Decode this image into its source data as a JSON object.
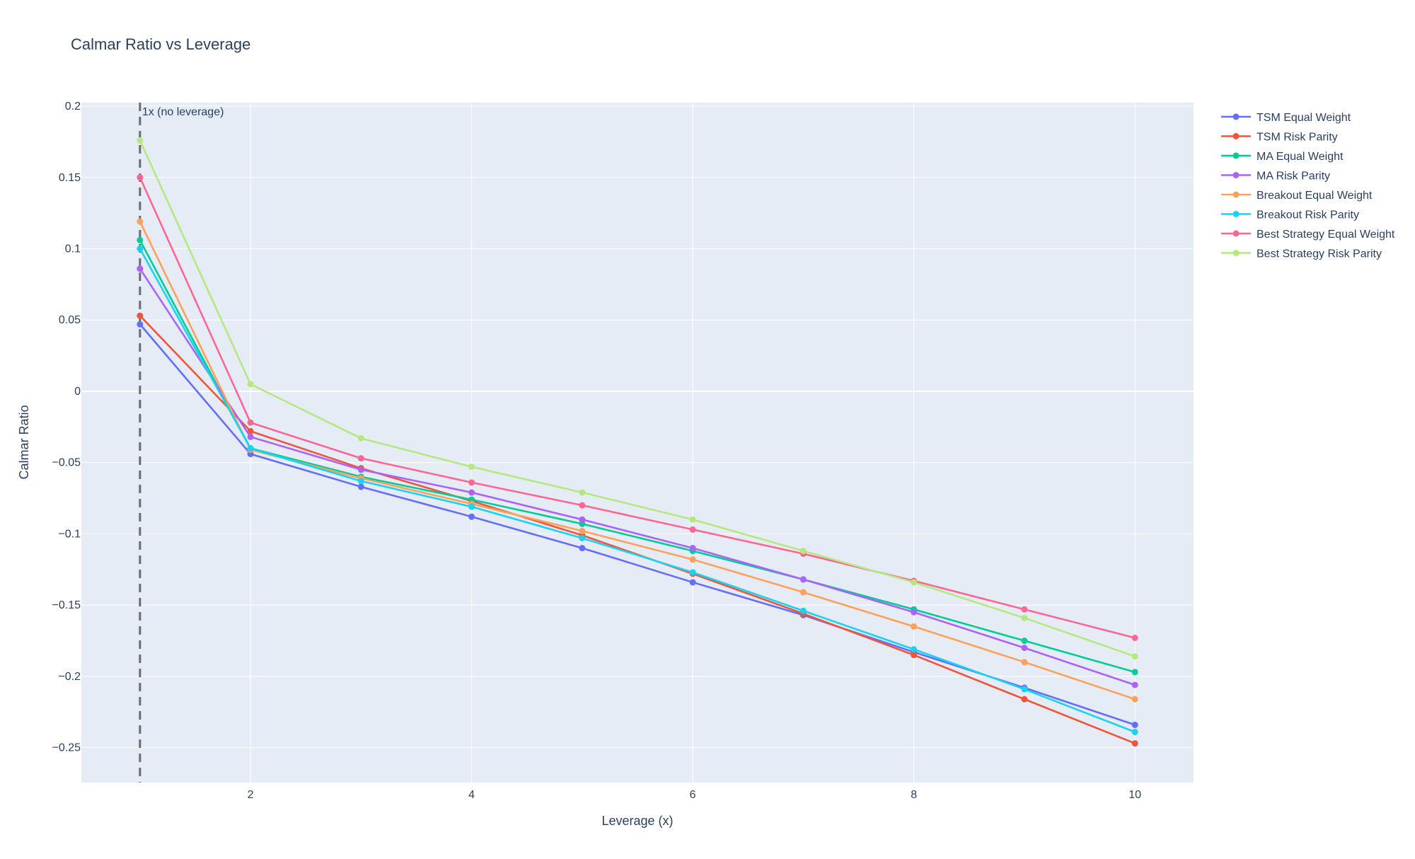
{
  "chart_data": {
    "type": "line",
    "title": "Calmar Ratio vs Leverage",
    "xlabel": "Leverage (x)",
    "ylabel": "Calmar Ratio",
    "x": [
      1,
      2,
      3,
      4,
      5,
      6,
      7,
      8,
      9,
      10
    ],
    "xlim": [
      0.47,
      10.53
    ],
    "ylim": [
      -0.2745,
      0.2025
    ],
    "x_ticks": [
      2,
      4,
      6,
      8,
      10
    ],
    "x_tick_labels": [
      "2",
      "4",
      "6",
      "8",
      "10"
    ],
    "y_ticks": [
      0.2,
      0.15,
      0.1,
      0.05,
      0,
      -0.05,
      -0.1,
      -0.15,
      -0.2,
      -0.25
    ],
    "y_tick_labels": [
      "0.2",
      "0.15",
      "0.1",
      "0.05",
      "0",
      "−0.05",
      "−0.1",
      "−0.15",
      "−0.2",
      "−0.25"
    ],
    "grid": true,
    "legend_position": "right",
    "annotation": {
      "x": 1,
      "text": "1x (no leverage)",
      "line_style": "dashed"
    },
    "series": [
      {
        "name": "TSM Equal Weight",
        "color": "#636efa",
        "values": [
          0.047,
          -0.044,
          -0.067,
          -0.088,
          -0.11,
          -0.134,
          -0.157,
          -0.183,
          -0.208,
          -0.234
        ]
      },
      {
        "name": "TSM Risk Parity",
        "color": "#ef553b",
        "values": [
          0.053,
          -0.028,
          -0.054,
          -0.077,
          -0.101,
          -0.128,
          -0.156,
          -0.185,
          -0.216,
          -0.247
        ]
      },
      {
        "name": "MA Equal Weight",
        "color": "#00cc96",
        "values": [
          0.106,
          -0.04,
          -0.06,
          -0.076,
          -0.093,
          -0.112,
          -0.132,
          -0.153,
          -0.175,
          -0.197
        ]
      },
      {
        "name": "MA Risk Parity",
        "color": "#ab63fa",
        "values": [
          0.086,
          -0.032,
          -0.055,
          -0.071,
          -0.09,
          -0.11,
          -0.132,
          -0.155,
          -0.18,
          -0.206
        ]
      },
      {
        "name": "Breakout Equal Weight",
        "color": "#ffa15a",
        "values": [
          0.119,
          -0.041,
          -0.061,
          -0.079,
          -0.098,
          -0.118,
          -0.141,
          -0.165,
          -0.19,
          -0.216
        ]
      },
      {
        "name": "Breakout Risk Parity",
        "color": "#19d3f3",
        "values": [
          0.1,
          -0.04,
          -0.063,
          -0.081,
          -0.103,
          -0.127,
          -0.154,
          -0.181,
          -0.209,
          -0.239
        ]
      },
      {
        "name": "Best Strategy Equal Weight",
        "color": "#ff6692",
        "values": [
          0.15,
          -0.022,
          -0.047,
          -0.064,
          -0.08,
          -0.097,
          -0.114,
          -0.133,
          -0.153,
          -0.173
        ]
      },
      {
        "name": "Best Strategy Risk Parity",
        "color": "#b6e880",
        "values": [
          0.176,
          0.005,
          -0.033,
          -0.053,
          -0.071,
          -0.09,
          -0.112,
          -0.134,
          -0.159,
          -0.186
        ]
      }
    ]
  }
}
